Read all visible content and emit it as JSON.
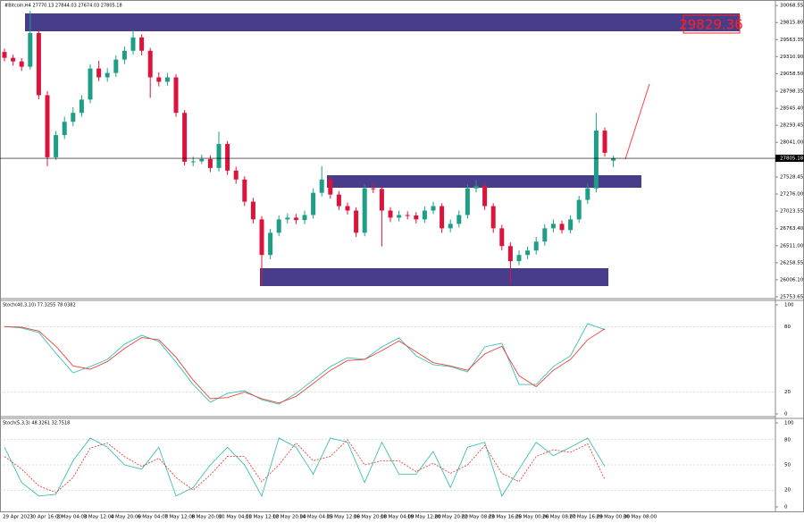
{
  "chart_data": [
    {
      "type": "candlestick",
      "title": "#Bitcoin,H4  27770.13 27844.03 27674.03 27805.18",
      "level_label": "29829.36",
      "bull_color": "#1e9e87",
      "bear_color": "#dc143c",
      "zone_color": "#483d8b",
      "open": [
        29380,
        29293,
        29240,
        29161,
        29661,
        28740,
        27820,
        28149,
        28346,
        28478,
        28675,
        29135,
        29004,
        29069,
        29267,
        29398,
        29595,
        29398,
        29004,
        28938,
        29004,
        28478,
        27754,
        27760,
        27794,
        27662,
        28017,
        27623,
        27491,
        27163,
        26900,
        26373,
        26702,
        26900,
        26926,
        26890,
        26965,
        27294,
        27491,
        27268,
        27097,
        27031,
        26702,
        27360,
        27350,
        27031,
        26926,
        26965,
        26958,
        26900,
        27031,
        27097,
        26768,
        26834,
        26965,
        27360,
        27399,
        27097,
        26768,
        26505,
        26281,
        26373,
        26439,
        26571,
        26768,
        26834,
        26742,
        26900,
        27189,
        27360,
        28215,
        27770.13
      ],
      "high": [
        29430,
        29340,
        29290,
        29990,
        29700,
        28800,
        28210,
        28420,
        28560,
        28740,
        29200,
        29250,
        29140,
        29330,
        29460,
        29700,
        29640,
        29440,
        29080,
        29070,
        29050,
        28520,
        27830,
        27860,
        27850,
        28200,
        28060,
        27680,
        27540,
        27220,
        26950,
        26760,
        26960,
        26990,
        26980,
        27030,
        27360,
        27689,
        27540,
        27320,
        27150,
        27080,
        27420,
        27440,
        27390,
        27080,
        27030,
        27020,
        27010,
        27090,
        27160,
        27140,
        26900,
        27030,
        27420,
        27480,
        27440,
        27140,
        26820,
        26560,
        26440,
        26500,
        26640,
        26830,
        26900,
        26880,
        26960,
        27250,
        27430,
        28478,
        28260,
        27844.03
      ],
      "low": [
        29240,
        29180,
        29100,
        29120,
        28680,
        27689,
        27780,
        28090,
        28280,
        28420,
        28620,
        28950,
        28940,
        29010,
        29200,
        29340,
        29330,
        28700,
        28870,
        28880,
        28420,
        27700,
        27690,
        27720,
        27600,
        27610,
        27560,
        27430,
        27100,
        26840,
        25913,
        26310,
        26650,
        26840,
        26830,
        26830,
        26910,
        27240,
        27210,
        27040,
        26970,
        26640,
        26650,
        27290,
        26500,
        26860,
        26870,
        26900,
        26840,
        26850,
        26980,
        26700,
        26710,
        26780,
        26910,
        27300,
        27040,
        26700,
        26440,
        25953,
        26220,
        26310,
        26380,
        26510,
        26710,
        26690,
        26690,
        26850,
        27130,
        27300,
        27830,
        27674.03
      ],
      "close": [
        29293,
        29240,
        29161,
        29661,
        28740,
        27820,
        28149,
        28346,
        28478,
        28675,
        29135,
        29004,
        29069,
        29267,
        29398,
        29595,
        29398,
        29004,
        28938,
        29004,
        28478,
        27754,
        27760,
        27794,
        27662,
        28017,
        27623,
        27491,
        27163,
        26900,
        26373,
        26702,
        26900,
        26926,
        26890,
        26965,
        27294,
        27491,
        27268,
        27097,
        27031,
        26702,
        27360,
        27350,
        27031,
        26926,
        26965,
        26958,
        26900,
        27031,
        27097,
        26768,
        26834,
        26965,
        27360,
        27399,
        27097,
        26768,
        26505,
        26281,
        26373,
        26439,
        26571,
        26768,
        26834,
        26742,
        26900,
        27189,
        27360,
        28215,
        27886,
        27805.18
      ],
      "ylim": [
        25740,
        30110
      ],
      "yticks": [
        30068.55,
        {
          "value": 29815.8,
          "label": "29815.80"
        },
        29563.35,
        {
          "value": 29310.9,
          "label": "29310.90"
        },
        {
          "value": 29058.5,
          "label": "29058.50"
        },
        28798.35,
        {
          "value": 28545.4,
          "label": "28545.40"
        },
        28293.45,
        {
          "value": 28041,
          "label": "28041.00"
        },
        27528.45,
        {
          "value": 27276,
          "label": "27276.00"
        },
        27023.55,
        {
          "value": 26763.4,
          "label": "26763.40"
        },
        {
          "value": 26511,
          "label": "26511.00"
        },
        26258.55,
        {
          "value": 26006.1,
          "label": "26006.10"
        },
        25753.65
      ],
      "xtick_labels": [
        "29 Apr 2023",
        "30 Apr 16:00",
        "2 May 04:00",
        "3 May 12:00",
        "4 May 20:00",
        "6 May 04:00",
        "7 May 12:00",
        "8 May 20:00",
        "10 May 04:00",
        "11 May 12:00",
        "12 May 20:00",
        "14 May 04:00",
        "15 May 12:00",
        "16 May 20:00",
        "18 May 04:00",
        "19 May 12:00",
        "20 May 20:00",
        "22 May 08:00",
        "23 May 16:00",
        "25 May 00:00",
        "26 May 08:00",
        "27 May 16:00",
        "29 May 00:00",
        "30 May 08:00"
      ]
    },
    {
      "type": "line",
      "title": "Stoch(40,3,10) 77.3255 78.0382",
      "series": [
        {
          "color": "#3cc0b4",
          "values": [
            80.3,
            78.7,
            74.6,
            55.7,
            37.7,
            43.4,
            50,
            63.9,
            72.1,
            66.4,
            47.5,
            27,
            10.7,
            18.9,
            21.3,
            13.1,
            9,
            18.9,
            31.1,
            43.4,
            51.6,
            50,
            61.5,
            69.7,
            53.3,
            45.1,
            43.4,
            38.5,
            61.5,
            64.8,
            27,
            27,
            43.4,
            53.3,
            82.8,
            77.3255
          ]
        },
        {
          "color": "#e8453c",
          "values": [
            80,
            79.5,
            76,
            62,
            44,
            41,
            48,
            60,
            70,
            68,
            52,
            31,
            14,
            15,
            20,
            14,
            10,
            16,
            28,
            40,
            49,
            50,
            58,
            67,
            57,
            47,
            44,
            40,
            55,
            62,
            35,
            25,
            40,
            50,
            68,
            78.0382
          ]
        }
      ],
      "ylim": [
        0,
        100
      ],
      "yticks": [
        100,
        80,
        20,
        0
      ]
    },
    {
      "type": "line",
      "title": "Stoch(5,3,3) 48.3261 32.7518",
      "series": [
        {
          "color": "#3cc0b4",
          "values": [
            71,
            29,
            13,
            15,
            55,
            82,
            71,
            50,
            45,
            71,
            13,
            23,
            50,
            71,
            50,
            13,
            82,
            71,
            39,
            82,
            77,
            29,
            77,
            39,
            39,
            66,
            23,
            71,
            77,
            13,
            45,
            77,
            61,
            71,
            82,
            48.3261
          ]
        },
        {
          "color": "#e8453c",
          "dashed": true,
          "values": [
            60,
            45,
            25,
            17,
            35,
            70,
            76,
            60,
            48,
            58,
            35,
            20,
            38,
            60,
            60,
            30,
            50,
            76,
            55,
            60,
            80,
            50,
            55,
            55,
            42,
            52,
            40,
            50,
            73,
            40,
            30,
            60,
            68,
            65,
            75,
            32.7518
          ]
        }
      ],
      "ylim": [
        0,
        100
      ],
      "yticks": [
        100,
        80,
        50,
        20,
        0
      ]
    }
  ]
}
